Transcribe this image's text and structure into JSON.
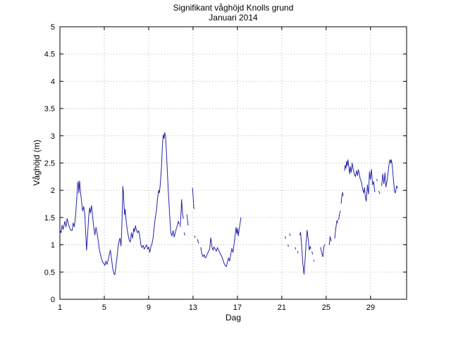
{
  "chart_data": {
    "type": "line",
    "title": "Signifikant våghöjd Knolls grund",
    "subtitle": "Januari 2014",
    "xlabel": "Dag",
    "ylabel": "Våghöjd (m)",
    "xlim": [
      1,
      32.25
    ],
    "ylim": [
      0,
      5
    ],
    "x_ticks": [
      1,
      5,
      9,
      13,
      17,
      21,
      25,
      29
    ],
    "y_ticks": [
      0,
      0.5,
      1,
      1.5,
      2,
      2.5,
      3,
      3.5,
      4,
      4.5,
      5
    ],
    "grid": true,
    "legend": "none",
    "line_color": "#2525AD",
    "grid_color": "#B4B4B4",
    "axis_color": "#000000",
    "series": [
      {
        "name": "Signifikant våghöjd (m), Knolls grund, januari 2014",
        "points": [
          [
            1.0,
            1.28
          ],
          [
            1.1,
            1.22
          ],
          [
            1.2,
            1.36
          ],
          [
            1.3,
            1.28
          ],
          [
            1.45,
            1.43
          ],
          [
            1.55,
            1.33
          ],
          [
            1.65,
            1.48
          ],
          [
            1.8,
            1.36
          ],
          [
            1.95,
            1.27
          ],
          [
            2.1,
            1.26
          ],
          [
            2.2,
            1.4
          ],
          [
            2.3,
            1.33
          ],
          [
            2.4,
            1.5
          ],
          [
            2.5,
            1.78
          ],
          [
            2.55,
            1.95
          ],
          [
            2.6,
            2.12
          ],
          [
            2.65,
            2.16
          ],
          [
            2.7,
            1.95
          ],
          [
            2.78,
            2.17
          ],
          [
            2.85,
            1.98
          ],
          [
            2.95,
            1.8
          ],
          [
            3.05,
            1.62
          ],
          [
            3.15,
            1.7
          ],
          [
            3.25,
            1.55
          ],
          [
            3.35,
            1.12
          ],
          [
            3.4,
            0.9
          ],
          [
            3.5,
            1.2
          ],
          [
            3.6,
            1.52
          ],
          [
            3.68,
            1.68
          ],
          [
            3.75,
            1.58
          ],
          [
            3.85,
            1.72
          ],
          [
            3.95,
            1.52
          ],
          [
            4.05,
            1.32
          ],
          [
            4.15,
            1.18
          ],
          [
            4.25,
            1.32
          ],
          [
            4.35,
            1.22
          ],
          [
            4.45,
            1.08
          ],
          [
            4.55,
            0.92
          ],
          [
            4.65,
            0.82
          ],
          [
            4.75,
            0.75
          ],
          [
            4.85,
            0.68
          ],
          [
            4.95,
            0.66
          ],
          [
            5.05,
            0.62
          ],
          [
            5.15,
            0.7
          ],
          [
            5.25,
            0.64
          ],
          [
            5.35,
            0.72
          ],
          [
            5.45,
            0.82
          ],
          [
            5.55,
            0.9
          ],
          [
            5.65,
            0.75
          ],
          [
            5.75,
            0.58
          ],
          [
            5.85,
            0.48
          ],
          [
            5.95,
            0.45
          ],
          [
            6.05,
            0.6
          ],
          [
            6.15,
            0.78
          ],
          [
            6.25,
            0.98
          ],
          [
            6.35,
            1.08
          ],
          [
            6.42,
            1.12
          ],
          [
            6.5,
            0.98
          ],
          [
            6.55,
            1.15
          ],
          [
            6.62,
            1.6
          ],
          [
            6.67,
            2.07
          ],
          [
            6.72,
            1.98
          ],
          [
            6.78,
            1.72
          ],
          [
            6.83,
            1.55
          ],
          [
            6.88,
            1.65
          ],
          [
            6.95,
            1.48
          ],
          [
            7.05,
            1.3
          ],
          [
            7.15,
            1.18
          ],
          [
            7.25,
            1.08
          ],
          [
            7.35,
            1.05
          ],
          [
            7.45,
            1.22
          ],
          [
            7.55,
            1.12
          ],
          [
            7.65,
            1.3
          ],
          [
            7.72,
            1.24
          ],
          [
            7.8,
            1.35
          ],
          [
            7.9,
            1.27
          ],
          [
            8.0,
            1.22
          ],
          [
            8.1,
            1.26
          ],
          [
            8.2,
            1.15
          ],
          [
            8.3,
            1.0
          ],
          [
            8.4,
            0.95
          ],
          [
            8.5,
            0.99
          ],
          [
            8.6,
            0.92
          ],
          [
            8.7,
            0.96
          ],
          [
            8.8,
            1.0
          ],
          [
            8.9,
            0.92
          ],
          [
            9.0,
            0.96
          ],
          [
            9.1,
            0.86
          ],
          [
            9.2,
            0.96
          ],
          [
            9.3,
            1.02
          ],
          [
            9.4,
            1.12
          ],
          [
            9.5,
            1.32
          ],
          [
            9.6,
            1.5
          ],
          [
            9.7,
            1.62
          ],
          [
            9.8,
            1.85
          ],
          [
            9.9,
            2.0
          ],
          [
            9.97,
            1.95
          ],
          [
            10.05,
            2.12
          ],
          [
            10.15,
            2.42
          ],
          [
            10.25,
            2.85
          ],
          [
            10.32,
            3.02
          ],
          [
            10.38,
            2.95
          ],
          [
            10.45,
            3.06
          ],
          [
            10.52,
            2.98
          ],
          [
            10.58,
            2.8
          ],
          [
            10.65,
            2.5
          ],
          [
            10.72,
            2.2
          ],
          [
            10.78,
            1.95
          ],
          [
            10.85,
            1.7
          ],
          [
            10.92,
            1.45
          ],
          [
            11.0,
            1.22
          ],
          [
            11.1,
            1.16
          ],
          [
            11.2,
            1.26
          ],
          [
            11.3,
            1.14
          ],
          [
            11.4,
            1.22
          ],
          [
            11.5,
            1.3
          ],
          [
            11.6,
            1.36
          ],
          [
            11.68,
            1.43
          ],
          [
            11.75,
            1.38
          ],
          null,
          [
            11.85,
            1.33
          ],
          [
            11.92,
            1.6
          ],
          [
            11.97,
            1.83
          ],
          [
            12.05,
            1.58
          ],
          [
            12.12,
            1.48
          ],
          null,
          [
            12.2,
            1.22
          ],
          [
            12.27,
            1.18
          ],
          null,
          [
            12.45,
            1.55
          ],
          [
            12.5,
            1.45
          ],
          [
            12.56,
            1.36
          ],
          null,
          [
            12.95,
            2.04
          ],
          [
            13.0,
            1.92
          ],
          [
            13.06,
            1.7
          ],
          [
            13.1,
            1.66
          ],
          null,
          [
            13.15,
            1.16
          ],
          [
            13.19,
            1.13
          ],
          null,
          [
            13.4,
            1.1
          ],
          [
            13.45,
            1.06
          ],
          [
            13.52,
            1.03
          ],
          null,
          [
            13.7,
            0.95
          ],
          [
            13.8,
            0.83
          ],
          [
            13.9,
            0.78
          ],
          [
            14.0,
            0.82
          ],
          [
            14.1,
            0.76
          ],
          [
            14.2,
            0.78
          ],
          [
            14.3,
            0.84
          ],
          [
            14.4,
            0.88
          ],
          [
            14.5,
            0.92
          ],
          [
            14.6,
            1.13
          ],
          [
            14.7,
            0.96
          ],
          [
            14.8,
            0.9
          ],
          [
            14.9,
            0.96
          ],
          [
            15.0,
            0.92
          ],
          [
            15.1,
            0.88
          ],
          [
            15.2,
            0.95
          ],
          [
            15.3,
            0.9
          ],
          [
            15.45,
            0.84
          ],
          [
            15.6,
            0.78
          ],
          [
            15.7,
            0.72
          ],
          [
            15.8,
            0.66
          ],
          [
            15.9,
            0.62
          ],
          [
            16.0,
            0.6
          ],
          [
            16.1,
            0.68
          ],
          [
            16.2,
            0.76
          ],
          [
            16.3,
            0.7
          ],
          [
            16.4,
            0.83
          ],
          [
            16.5,
            0.93
          ],
          [
            16.6,
            0.86
          ],
          [
            16.7,
            1.02
          ],
          [
            16.8,
            1.18
          ],
          [
            16.87,
            1.32
          ],
          [
            16.95,
            1.2
          ],
          [
            17.02,
            1.3
          ],
          [
            17.08,
            1.16
          ],
          [
            17.15,
            1.27
          ],
          [
            17.25,
            1.4
          ],
          [
            17.32,
            1.5
          ],
          null,
          [
            21.3,
            1.15
          ],
          [
            21.36,
            1.12
          ],
          null,
          [
            21.55,
            1.0
          ],
          [
            21.6,
            0.97
          ],
          null,
          [
            21.7,
            1.2
          ],
          [
            21.76,
            1.17
          ],
          null,
          [
            22.2,
            0.95
          ],
          [
            22.26,
            0.92
          ],
          null,
          [
            22.42,
            0.88
          ],
          [
            22.47,
            0.85
          ],
          null,
          [
            22.62,
            1.18
          ],
          [
            22.7,
            1.23
          ],
          [
            22.8,
            0.95
          ],
          [
            22.9,
            0.65
          ],
          [
            23.0,
            0.46
          ],
          [
            23.1,
            0.72
          ],
          [
            23.2,
            1.05
          ],
          [
            23.28,
            1.27
          ],
          [
            23.38,
            1.1
          ],
          [
            23.48,
            0.9
          ],
          [
            23.56,
            0.97
          ],
          [
            23.62,
            0.93
          ],
          null,
          [
            23.72,
            0.87
          ],
          [
            23.78,
            0.83
          ],
          null,
          [
            23.88,
            0.72
          ],
          [
            23.93,
            0.7
          ],
          null,
          [
            24.5,
            0.95
          ],
          [
            24.6,
            0.85
          ],
          [
            24.7,
            0.78
          ],
          [
            24.8,
            0.97
          ],
          [
            24.87,
            1.0
          ],
          null,
          [
            25.28,
            1.0
          ],
          [
            25.35,
            1.15
          ],
          [
            25.45,
            1.07
          ],
          null,
          [
            25.78,
            1.12
          ],
          [
            25.88,
            1.32
          ],
          [
            25.98,
            1.45
          ],
          [
            26.04,
            1.4
          ],
          null,
          [
            26.12,
            1.46
          ],
          [
            26.2,
            1.56
          ],
          [
            26.28,
            1.62
          ],
          null,
          [
            26.35,
            1.76
          ],
          [
            26.42,
            1.9
          ],
          [
            26.48,
            1.96
          ],
          [
            26.53,
            1.9
          ],
          null,
          [
            26.65,
            2.36
          ],
          [
            26.72,
            2.46
          ],
          [
            26.78,
            2.4
          ],
          [
            26.84,
            2.53
          ],
          [
            26.9,
            2.45
          ],
          [
            26.96,
            2.56
          ],
          [
            27.05,
            2.42
          ],
          [
            27.12,
            2.3
          ],
          [
            27.18,
            2.43
          ],
          [
            27.26,
            2.33
          ],
          [
            27.34,
            2.5
          ],
          [
            27.44,
            2.38
          ],
          [
            27.54,
            2.3
          ],
          [
            27.64,
            2.25
          ],
          [
            27.74,
            2.36
          ],
          [
            27.82,
            2.27
          ],
          [
            27.9,
            2.38
          ],
          [
            27.98,
            2.3
          ],
          [
            28.08,
            2.2
          ],
          [
            28.18,
            2.15
          ],
          [
            28.28,
            2.03
          ],
          [
            28.38,
            1.95
          ],
          [
            28.46,
            2.05
          ],
          [
            28.54,
            1.86
          ],
          [
            28.62,
            1.8
          ],
          [
            28.72,
            2.1
          ],
          [
            28.82,
            1.93
          ],
          [
            28.9,
            2.34
          ],
          [
            28.98,
            2.2
          ],
          [
            29.08,
            2.38
          ],
          [
            29.18,
            2.1
          ],
          [
            29.28,
            2.16
          ],
          [
            29.38,
            1.97
          ],
          null,
          [
            29.55,
            2.2
          ],
          [
            29.6,
            2.17
          ],
          null,
          [
            29.75,
            1.98
          ],
          [
            29.84,
            1.94
          ],
          null,
          [
            30.0,
            2.08
          ],
          [
            30.1,
            2.3
          ],
          [
            30.2,
            2.12
          ],
          [
            30.3,
            2.32
          ],
          [
            30.38,
            2.06
          ],
          [
            30.48,
            2.16
          ],
          [
            30.58,
            2.32
          ],
          [
            30.68,
            2.5
          ],
          [
            30.76,
            2.56
          ],
          [
            30.82,
            2.5
          ],
          [
            30.88,
            2.56
          ],
          [
            30.96,
            2.44
          ],
          [
            31.06,
            2.2
          ],
          [
            31.16,
            1.98
          ],
          [
            31.24,
            1.95
          ],
          [
            31.34,
            2.08
          ],
          [
            31.44,
            2.04
          ]
        ]
      }
    ]
  }
}
